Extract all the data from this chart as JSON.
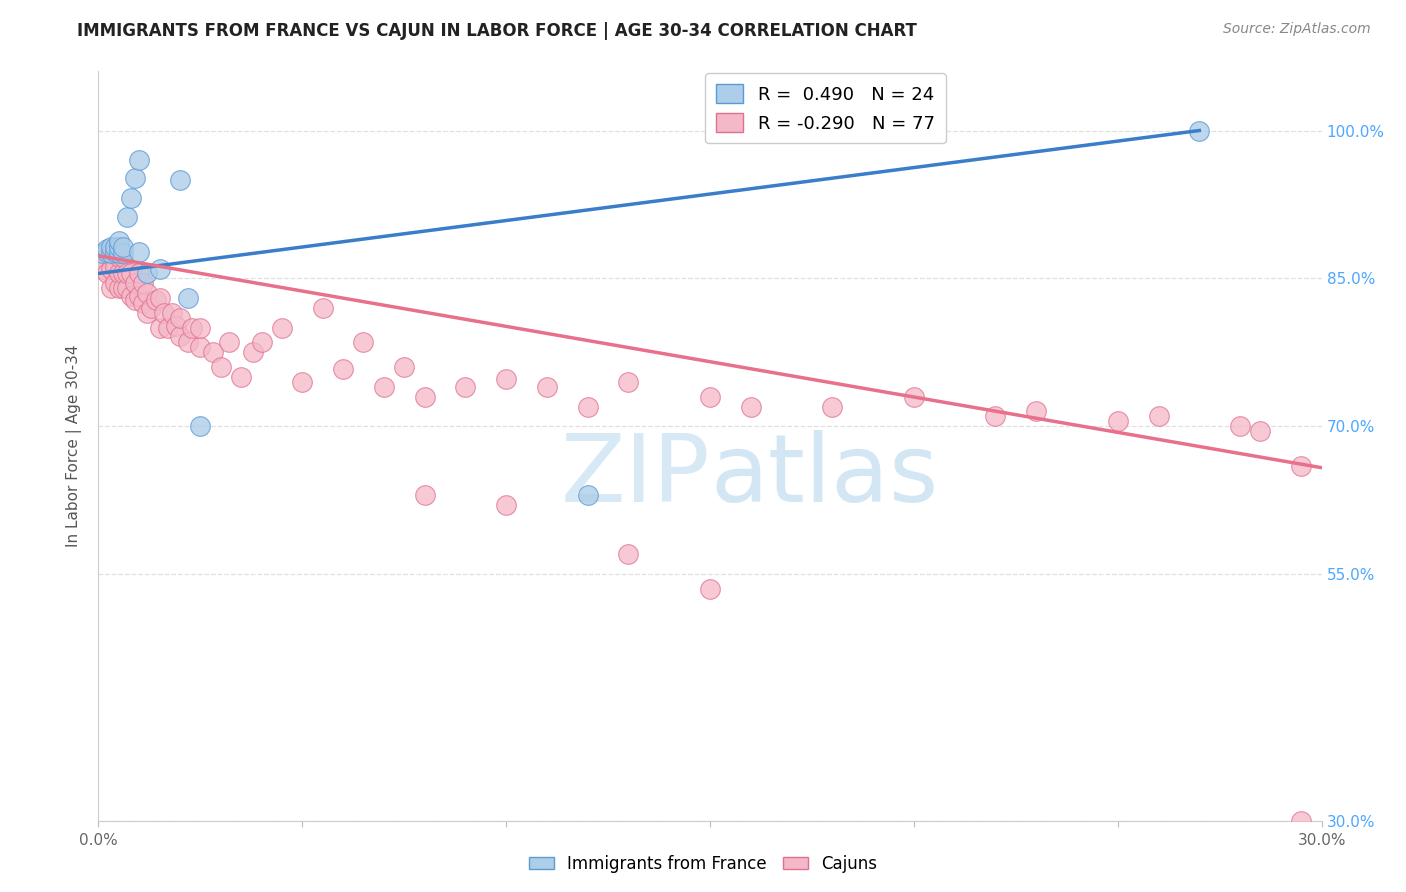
{
  "title": "IMMIGRANTS FROM FRANCE VS CAJUN IN LABOR FORCE | AGE 30-34 CORRELATION CHART",
  "source": "Source: ZipAtlas.com",
  "ylabel": "In Labor Force | Age 30-34",
  "xlim": [
    0.0,
    0.3
  ],
  "ylim": [
    0.3,
    1.06
  ],
  "blue_R": 0.49,
  "blue_N": 24,
  "pink_R": -0.29,
  "pink_N": 77,
  "blue_fill": "#aecde8",
  "blue_edge": "#5b9bd5",
  "pink_fill": "#f4b8c8",
  "pink_edge": "#e07090",
  "blue_line_color": "#3a7dc9",
  "pink_line_color": "#e8708a",
  "watermark_color": "#d0e8f5",
  "grid_color": "#e0e0e0",
  "right_tick_color": "#4da6ff",
  "blue_line_x0": 0.0,
  "blue_line_y0": 0.855,
  "blue_line_x1": 0.27,
  "blue_line_y1": 1.0,
  "pink_line_x0": 0.0,
  "pink_line_y0": 0.873,
  "pink_line_x1": 0.3,
  "pink_line_y1": 0.658,
  "blue_x": [
    0.001,
    0.002,
    0.002,
    0.003,
    0.003,
    0.004,
    0.004,
    0.005,
    0.005,
    0.005,
    0.006,
    0.006,
    0.007,
    0.008,
    0.009,
    0.01,
    0.01,
    0.012,
    0.015,
    0.02,
    0.022,
    0.025,
    0.12,
    0.27
  ],
  "blue_y": [
    0.876,
    0.877,
    0.88,
    0.876,
    0.882,
    0.877,
    0.882,
    0.876,
    0.882,
    0.888,
    0.876,
    0.882,
    0.912,
    0.932,
    0.952,
    0.877,
    0.97,
    0.855,
    0.86,
    0.95,
    0.83,
    0.7,
    0.63,
    1.0
  ],
  "pink_x": [
    0.001,
    0.001,
    0.002,
    0.002,
    0.003,
    0.003,
    0.003,
    0.004,
    0.004,
    0.004,
    0.005,
    0.005,
    0.005,
    0.006,
    0.006,
    0.006,
    0.007,
    0.007,
    0.008,
    0.008,
    0.009,
    0.009,
    0.01,
    0.01,
    0.011,
    0.011,
    0.012,
    0.012,
    0.013,
    0.014,
    0.015,
    0.015,
    0.016,
    0.017,
    0.018,
    0.019,
    0.02,
    0.02,
    0.022,
    0.023,
    0.025,
    0.025,
    0.028,
    0.03,
    0.032,
    0.035,
    0.038,
    0.04,
    0.045,
    0.05,
    0.055,
    0.06,
    0.065,
    0.07,
    0.075,
    0.08,
    0.09,
    0.1,
    0.11,
    0.12,
    0.13,
    0.15,
    0.16,
    0.18,
    0.2,
    0.22,
    0.23,
    0.25,
    0.26,
    0.28,
    0.285,
    0.295,
    0.08,
    0.13,
    0.295,
    0.1,
    0.15
  ],
  "pink_y": [
    0.872,
    0.86,
    0.855,
    0.876,
    0.84,
    0.86,
    0.876,
    0.845,
    0.862,
    0.876,
    0.84,
    0.855,
    0.872,
    0.84,
    0.855,
    0.872,
    0.84,
    0.855,
    0.832,
    0.855,
    0.828,
    0.845,
    0.832,
    0.855,
    0.825,
    0.845,
    0.815,
    0.835,
    0.82,
    0.828,
    0.8,
    0.83,
    0.815,
    0.8,
    0.815,
    0.802,
    0.792,
    0.81,
    0.785,
    0.8,
    0.78,
    0.8,
    0.775,
    0.76,
    0.785,
    0.75,
    0.775,
    0.785,
    0.8,
    0.745,
    0.82,
    0.758,
    0.785,
    0.74,
    0.76,
    0.73,
    0.74,
    0.748,
    0.74,
    0.72,
    0.745,
    0.73,
    0.72,
    0.72,
    0.73,
    0.71,
    0.715,
    0.705,
    0.71,
    0.7,
    0.695,
    0.3,
    0.63,
    0.57,
    0.66,
    0.62,
    0.535
  ]
}
